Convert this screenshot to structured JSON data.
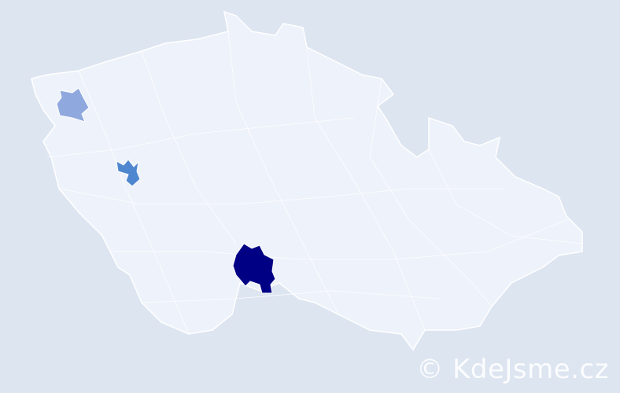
{
  "map": {
    "country_fill": "#eef2fa",
    "border_color": "#ffffff",
    "background": "#dde5f1",
    "highlighted_regions": [
      {
        "name": "district-northwest",
        "color": "#8fa9df"
      },
      {
        "name": "district-west",
        "color": "#4f86d0"
      },
      {
        "name": "district-south",
        "color": "#000085"
      }
    ]
  },
  "watermark": "© KdeJsme.cz"
}
